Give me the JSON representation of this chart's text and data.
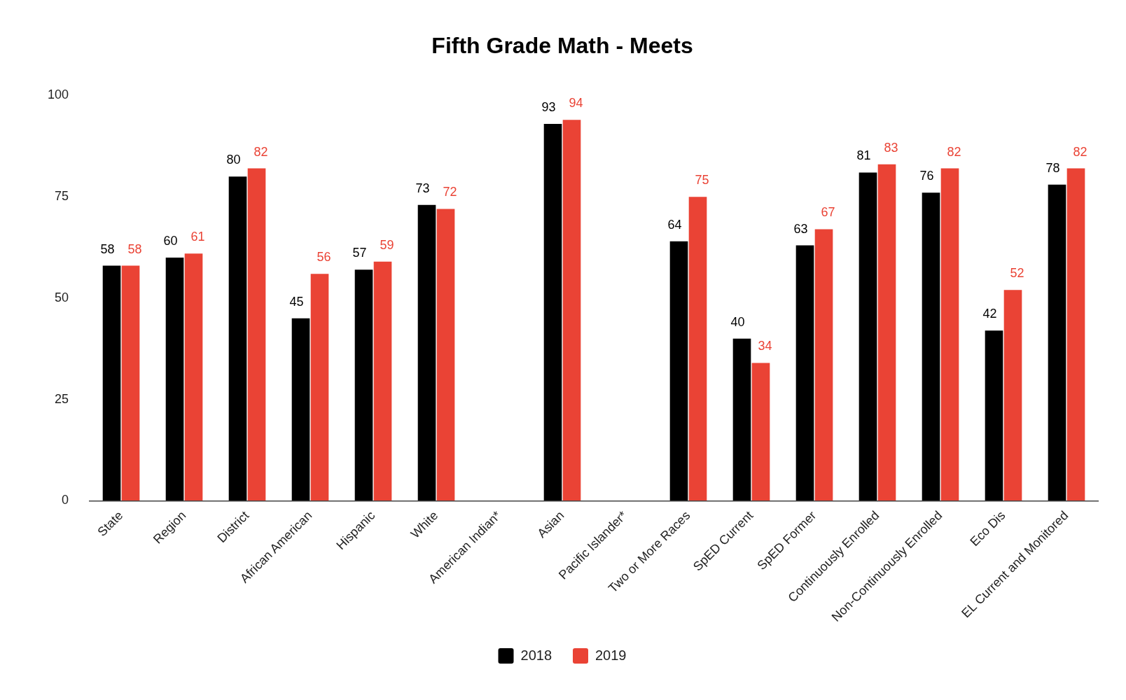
{
  "chart_data": {
    "type": "bar",
    "title": "Fifth Grade Math - Meets",
    "categories": [
      "State",
      "Region",
      "District",
      "African American",
      "Hispanic",
      "White",
      "American Indian*",
      "Asian",
      "Pacific Islander*",
      "Two or More Races",
      "SpED Current",
      "SpED Former",
      "Continuously Enrolled",
      "Non-Continuously Enrolled",
      "Eco Dis",
      "EL Current and Monitored"
    ],
    "series": [
      {
        "name": "2018",
        "color": "#000000",
        "values": [
          58,
          60,
          80,
          45,
          57,
          73,
          null,
          93,
          null,
          64,
          40,
          63,
          81,
          76,
          42,
          78
        ]
      },
      {
        "name": "2019",
        "color": "#ea4335",
        "values": [
          58,
          61,
          82,
          56,
          59,
          72,
          null,
          94,
          null,
          75,
          34,
          67,
          83,
          82,
          52,
          82
        ]
      }
    ],
    "ylim": [
      0,
      100
    ],
    "yticks": [
      0,
      25,
      50,
      75,
      100
    ],
    "data_labels": true,
    "legend": "bottom"
  }
}
